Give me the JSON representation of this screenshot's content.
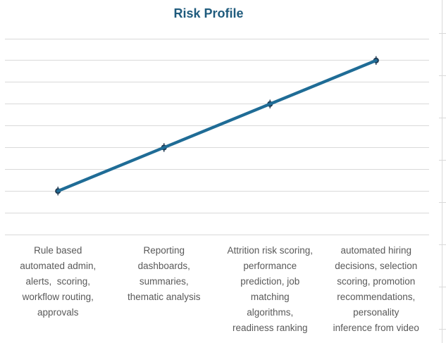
{
  "chart_data": {
    "type": "line",
    "title": "Risk Profile",
    "categories_lines": [
      [
        "Rule based",
        "automated admin,",
        "alerts,  scoring,",
        "workflow routing,",
        "approvals"
      ],
      [
        "Reporting",
        "dashboards,",
        "summaries,",
        "thematic analysis"
      ],
      [
        "Attrition risk scoring,",
        "performance",
        "prediction, job",
        "matching",
        "algorithms,",
        "readiness ranking"
      ],
      [
        "automated hiring",
        "decisions, selection",
        "scoring, promotion",
        "recommendations,",
        "personality",
        "inference from video"
      ]
    ],
    "values": [
      1,
      2,
      3,
      4
    ],
    "error_bar": 0.1,
    "ylim": [
      0,
      4.5
    ],
    "gridline_step": 0.5,
    "y_tick_labels_visible": false,
    "legend_position": "none",
    "grid": "horizontal",
    "colors": {
      "title": "#1F5B7D",
      "line": "#1F6C96",
      "marker": "#203A52",
      "gridline": "#D9D9D9",
      "category_label": "#595959",
      "background": "#FFFFFF"
    }
  },
  "adjacent_panel_edge": {
    "visible": true,
    "tick_count": 8,
    "color": "#D9D9D9"
  }
}
